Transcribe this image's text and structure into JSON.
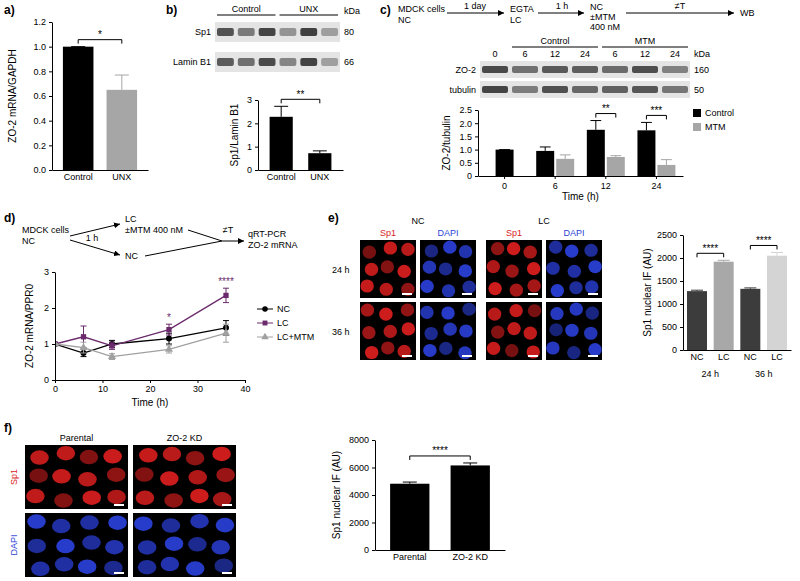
{
  "chart_data": [
    {
      "type": "bar",
      "title": "a)",
      "ylabel": "ZO-2 mRNA/GAPDH",
      "categories": [
        "Control",
        "UNX"
      ],
      "values": [
        1.0,
        0.65
      ],
      "errors": [
        0,
        0.12
      ],
      "colors": [
        "#000000",
        "#a6a6a6"
      ],
      "ylim": [
        0,
        1.2
      ],
      "yticks": [
        {
          "value": 0,
          "label": "0.0"
        },
        0.2,
        0.4,
        0.6,
        0.8,
        {
          "value": 1,
          "label": "1.0"
        },
        1.2
      ],
      "annotations": [
        "*"
      ]
    },
    {
      "type": "bar",
      "title": "b)",
      "ylabel": "Sp1/Lamin B1",
      "categories": [
        "Control",
        "UNX"
      ],
      "values": [
        2.28,
        0.72
      ],
      "errors": [
        0.45,
        0.1
      ],
      "color": "#000000",
      "ylim": [
        0,
        3
      ],
      "yticks": [
        0,
        1,
        2,
        3
      ],
      "annotations": [
        "**"
      ],
      "blot": [
        "Control",
        "UNX",
        "kDa",
        "Sp1",
        "80",
        "Lamin B1",
        "66"
      ]
    },
    {
      "type": "bar",
      "title": "c)",
      "xlabel": "Time (h)",
      "ylabel": "ZO-2/tubulin",
      "categories": [
        "0",
        "6",
        "12",
        "24"
      ],
      "series": [
        {
          "name": "Control",
          "color": "#000000",
          "values": [
            1.0,
            0.95,
            1.75,
            1.73
          ],
          "errors": [
            0,
            0.15,
            0.35,
            0.3
          ]
        },
        {
          "name": "MTM",
          "color": "#a6a6a6",
          "values": [
            null,
            0.65,
            0.72,
            0.42
          ],
          "errors": [
            null,
            0.15,
            0.05,
            0.2
          ]
        }
      ],
      "ylim": [
        0,
        2.5
      ],
      "yticks": [
        0,
        0.5,
        {
          "value": 1,
          "label": "1.0"
        },
        1.5,
        {
          "value": 2,
          "label": "2.0"
        },
        2.5
      ],
      "legend": "right",
      "annotations": [
        "**",
        "***"
      ],
      "scheme": [
        "MDCK cells",
        "NC",
        "1 day",
        "EGTA",
        "LC",
        "1 h",
        "NC",
        "±MTM",
        "400 nM",
        "≠T",
        "WB"
      ],
      "blot": [
        "Control",
        "MTM",
        "0",
        "6",
        "12",
        "24",
        "6",
        "12",
        "24",
        "kDa",
        "ZO-2",
        "160",
        "tubulin",
        "50"
      ]
    },
    {
      "type": "line",
      "title": "d)",
      "xlabel": "Time (h)",
      "ylabel": "ZO-2 mRNA/PPR0",
      "x": [
        0,
        6,
        12,
        24,
        36
      ],
      "series": [
        {
          "name": "NC",
          "color": "#000000",
          "marker": "circle",
          "values": [
            1.0,
            0.75,
            1.0,
            1.15,
            1.45
          ],
          "errors": [
            0,
            0.1,
            0.1,
            0.15,
            0.2
          ]
        },
        {
          "name": "LC",
          "color": "#6b2a6b",
          "marker": "square",
          "values": [
            1.0,
            1.2,
            0.95,
            1.4,
            2.35
          ],
          "errors": [
            0,
            0.3,
            0.1,
            0.15,
            0.2
          ]
        },
        {
          "name": "LC+MTM",
          "color": "#a0a0a0",
          "marker": "triangle",
          "values": [
            1.0,
            0.9,
            0.65,
            0.85,
            1.3
          ],
          "errors": [
            0,
            0.15,
            0.08,
            0.1,
            0.25
          ]
        }
      ],
      "xlim": [
        0,
        40
      ],
      "xticks": [
        0,
        10,
        20,
        30,
        40
      ],
      "ylim": [
        0,
        3
      ],
      "yticks": [
        0,
        1,
        2,
        3
      ],
      "legend": "right",
      "annotations": [
        "*",
        "****"
      ],
      "scheme": [
        "MDCK cells",
        "NC",
        "1 h",
        "LC",
        "±MTM 400 nM",
        "NC",
        "≠T",
        "qRT-PCR",
        "ZO-2 mRNA"
      ]
    },
    {
      "type": "bar",
      "title": "e)",
      "ylabel": "Sp1 nuclear IF (AU)",
      "categories": [
        "NC",
        "LC",
        "NC",
        "LC"
      ],
      "groups": [
        "24 h",
        "36 h"
      ],
      "values": [
        1280,
        1920,
        1330,
        2050
      ],
      "errors": [
        20,
        30,
        20,
        70
      ],
      "colors": [
        "#3c3c3c",
        "#a8a8a8",
        "#3c3c3c",
        "#d4d4d4"
      ],
      "ylim": [
        0,
        2500
      ],
      "yticks": [
        0,
        500,
        1000,
        1500,
        2000,
        2500
      ],
      "annotations": [
        "****",
        "****"
      ],
      "micrograph": [
        "NC",
        "LC",
        "Sp1",
        "DAPI",
        "Sp1",
        "DAPI",
        "24 h",
        "36 h"
      ]
    },
    {
      "type": "bar",
      "title": "f)",
      "ylabel": "Sp1 nuclear IF (AU)",
      "categories": [
        "Parental",
        "ZO-2 KD"
      ],
      "values": [
        4820,
        6150
      ],
      "errors": [
        120,
        180
      ],
      "color": "#000000",
      "ylim": [
        0,
        8000
      ],
      "yticks": [
        0,
        2000,
        4000,
        6000,
        8000
      ],
      "annotations": [
        "****"
      ],
      "micrograph": [
        "Sp1",
        "DAPI",
        "Parental",
        "ZO-2 KD"
      ]
    }
  ]
}
